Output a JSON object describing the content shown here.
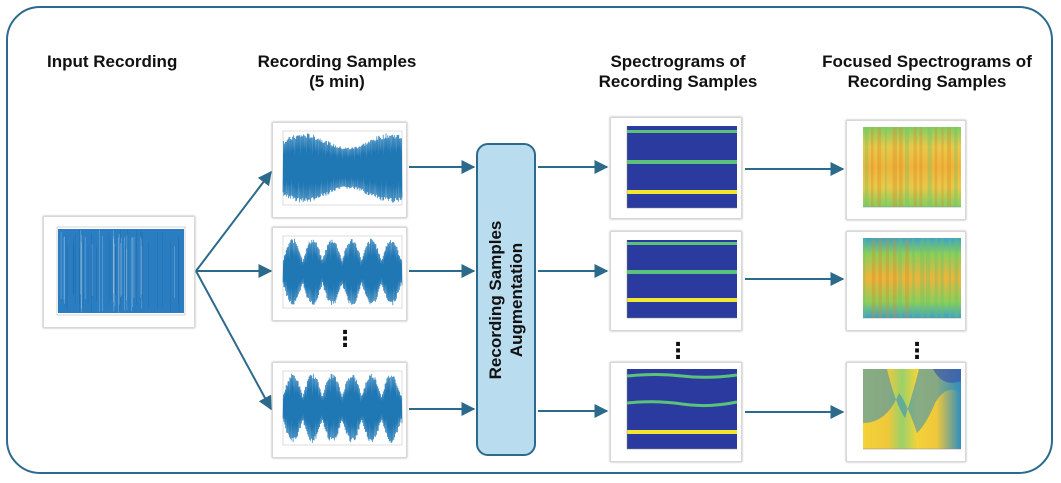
{
  "headings": {
    "input": "Input Recording",
    "samples_line1": "Recording Samples",
    "samples_line2": "(5 min)",
    "spectrograms_line1": "Spectrograms of",
    "spectrograms_line2": "Recording Samples",
    "focused_line1": "Focused Spectrograms of",
    "focused_line2": "Recording Samples"
  },
  "augmentation": {
    "line1": "Recording Samples",
    "line2": "Augmentation"
  },
  "ellipsis": "⋮",
  "colors": {
    "frame": "#2c6a8c",
    "arrow": "#2c6a8c",
    "box_fill": "#b9dcef",
    "waveform": "#1f77b4",
    "spectro_bg": "#2b3a9e",
    "spectro_line_green": "#5cc27a",
    "spectro_line_yellow": "#f2e630"
  }
}
